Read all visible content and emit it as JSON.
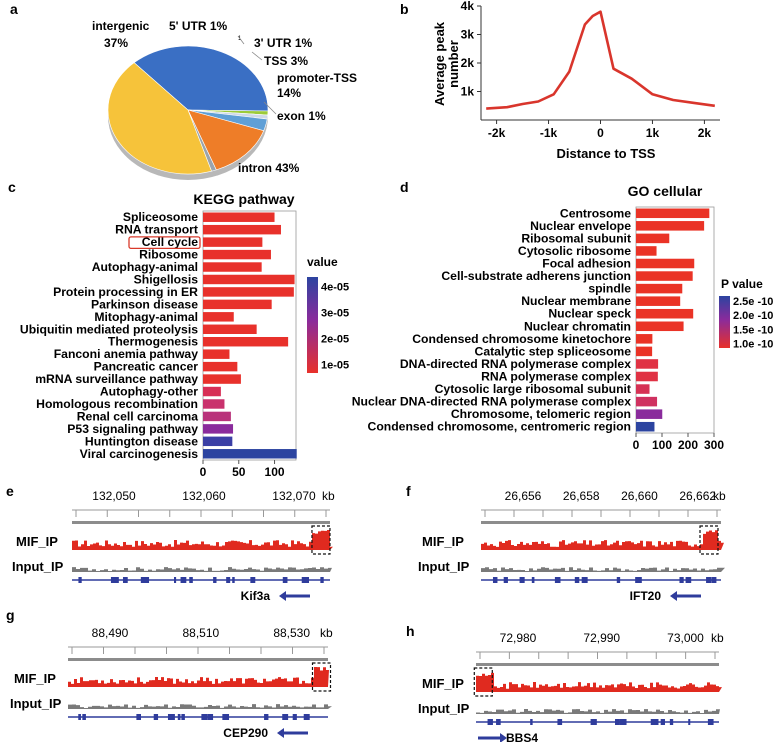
{
  "panels": {
    "a": "a",
    "b": "b",
    "c": "c",
    "d": "d",
    "e": "e",
    "f": "f",
    "g": "g",
    "h": "h"
  },
  "colors": {
    "kegg_red": "#e8312b",
    "go_red": "#ea3326",
    "blue": "#2c44a0",
    "purple": "#8a2b9c",
    "mif_track": "#e02a1f",
    "input_track": "#7a7a7a",
    "gene_blue": "#2f3c9c",
    "profile_red": "#d9352c"
  },
  "chart_data": [
    {
      "id": "a",
      "type": "pie",
      "title": "",
      "slices": [
        {
          "label": "intergenic",
          "value": 37,
          "text": "37%",
          "color": "#3a6fc4"
        },
        {
          "label": "5' UTR",
          "value": 1,
          "text": "5' UTR 1%",
          "color": "#9ccb3b"
        },
        {
          "label": "3' UTR",
          "value": 1,
          "text": "3' UTR 1%",
          "color": "#cfd9e8"
        },
        {
          "label": "TSS",
          "value": 3,
          "text": "TSS 3%",
          "color": "#5f9fd6"
        },
        {
          "label": "promoter-TSS",
          "value": 14,
          "text": "promoter-TSS 14%",
          "color": "#ee7d28"
        },
        {
          "label": "exon",
          "value": 1,
          "text": "exon 1%",
          "color": "#9aa4ad"
        },
        {
          "label": "intron",
          "value": 43,
          "text": "intron 43%",
          "color": "#f6c33a"
        }
      ],
      "label_text": {
        "intergenic": "intergenic",
        "intergenic_pct": "37%",
        "utr5": "5' UTR 1%",
        "utr3": "3' UTR 1%",
        "one": "1",
        "tss": "TSS 3%",
        "promoter": "promoter-TSS",
        "promoter_pct": "14%",
        "exon": "exon 1%",
        "intron": "intron 43%"
      }
    },
    {
      "id": "b",
      "type": "line",
      "xlabel": "Distance to TSS",
      "ylabel_line1": "Average peak",
      "ylabel_line2": "number",
      "xlim": [
        -2300,
        2300
      ],
      "ylim": [
        0,
        4000
      ],
      "x_ticks": [
        -2000,
        -1000,
        0,
        1000,
        2000
      ],
      "x_tick_labels": [
        "-2k",
        "-1k",
        "0",
        "1k",
        "2k"
      ],
      "y_ticks": [
        1000,
        2000,
        3000,
        4000
      ],
      "y_tick_labels": [
        "1k",
        "2k",
        "3k",
        "4k"
      ],
      "x": [
        -2200,
        -1800,
        -1500,
        -1200,
        -900,
        -600,
        -300,
        -150,
        0,
        250,
        600,
        1000,
        1400,
        1800,
        2200
      ],
      "y": [
        400,
        450,
        560,
        650,
        900,
        1700,
        3350,
        3650,
        3800,
        1800,
        1450,
        900,
        700,
        600,
        500
      ]
    },
    {
      "id": "c",
      "type": "bar",
      "orientation": "horizontal",
      "title": "KEGG pathway",
      "xlim": [
        0,
        130
      ],
      "x_ticks": [
        0,
        50,
        100
      ],
      "x_tick_labels": [
        "0",
        "50",
        "100"
      ],
      "highlight": "Cell cycle",
      "legend_title": "value",
      "legend_ticks": [
        "4e-05",
        "3e-05",
        "2e-05",
        "1e-05"
      ],
      "categories": [
        "Spliceosome",
        "RNA transport",
        "Cell cycle",
        "Ribosome",
        "Autophagy-animal",
        "Shigellosis",
        "Protein processing in ER",
        "Parkinson disease",
        "Mitophagy-animal",
        "Ubiquitin mediated proteolysis",
        "Thermogenesis",
        "Fanconi anemia pathway",
        "Pancreatic cancer",
        "mRNA surveillance pathway",
        "Autophagy-other",
        "Homologous recombination",
        "Renal cell carcinoma",
        "P53 signaling pathway",
        "Huntington disease",
        "Viral carcinogenesis"
      ],
      "values": [
        100,
        109,
        83,
        95,
        82,
        128,
        127,
        96,
        43,
        75,
        119,
        37,
        48,
        53,
        25,
        30,
        39,
        42,
        41,
        131
      ],
      "value_colors": [
        "#e8312b",
        "#e8312b",
        "#e8312b",
        "#e8312b",
        "#e8312b",
        "#e8312b",
        "#e8312b",
        "#e8312b",
        "#e8312b",
        "#e8312b",
        "#e8312b",
        "#e8312b",
        "#e8312b",
        "#e8312b",
        "#d72f56",
        "#c9326d",
        "#b9337b",
        "#8a2b9c",
        "#3b3fa5",
        "#2c44a0"
      ]
    },
    {
      "id": "d",
      "type": "bar",
      "orientation": "horizontal",
      "title": "GO cellular",
      "xlim": [
        0,
        300
      ],
      "x_ticks": [
        0,
        100,
        200,
        300
      ],
      "x_tick_labels": [
        "0",
        "100",
        "200",
        "300"
      ],
      "legend_title": "P value",
      "legend_ticks": [
        "2.5e -10",
        "2.0e -10",
        "1.5e -10",
        "1.0e -10"
      ],
      "categories": [
        "Centrosome",
        "Nuclear envelope",
        "Ribosomal subunit",
        "Cytosolic ribosome",
        "Focal adhesion",
        "Cell-substrate adherens junction",
        "spindle",
        "Nuclear membrane",
        "Nuclear speck",
        "Nuclear chromatin",
        "Condensed chromosome kinetochore",
        "Catalytic step spliceosome",
        "DNA-directed RNA polymerase complex",
        "RNA polymerase complex",
        "Cytosolic large ribosomal subunit",
        "Nuclear DNA-directed RNA polymerase complex",
        "Chromosome, telomeric region",
        "Condensed chromosome, centromeric region"
      ],
      "values": [
        282,
        262,
        128,
        79,
        224,
        218,
        178,
        170,
        220,
        183,
        63,
        62,
        85,
        84,
        52,
        81,
        101,
        71
      ],
      "value_colors": [
        "#ea3326",
        "#ea3326",
        "#ea3326",
        "#ea3326",
        "#ea3326",
        "#ea3326",
        "#ea3326",
        "#ea3326",
        "#ea3326",
        "#ea3326",
        "#ea3326",
        "#ea3326",
        "#e03244",
        "#e03244",
        "#d63154",
        "#cf3160",
        "#8a2b9c",
        "#2c44a0"
      ]
    },
    {
      "id": "e",
      "type": "tracks",
      "coords": [
        "132,050",
        "132,060",
        "132,070"
      ],
      "unit": "kb",
      "track1": "MIF_IP",
      "track2": "Input_IP",
      "gene": "Kif3a",
      "gene_strand": "minus"
    },
    {
      "id": "f",
      "type": "tracks",
      "coords": [
        "26,656",
        "26,658",
        "26,660",
        "26,662"
      ],
      "unit": "kb",
      "track1": "MIF_IP",
      "track2": "Input_IP",
      "gene": "IFT20",
      "gene_strand": "minus"
    },
    {
      "id": "g",
      "type": "tracks",
      "coords": [
        "88,490",
        "88,510",
        "88,530"
      ],
      "unit": "kb",
      "track1": "MIF_IP",
      "track2": "Input_IP",
      "gene": "CEP290",
      "gene_strand": "minus"
    },
    {
      "id": "h",
      "type": "tracks",
      "coords": [
        "72,980",
        "72,990",
        "73,000"
      ],
      "unit": "kb",
      "track1": "MIF_IP",
      "track2": "Input_IP",
      "gene": "BBS4",
      "gene_strand": "plus"
    }
  ]
}
